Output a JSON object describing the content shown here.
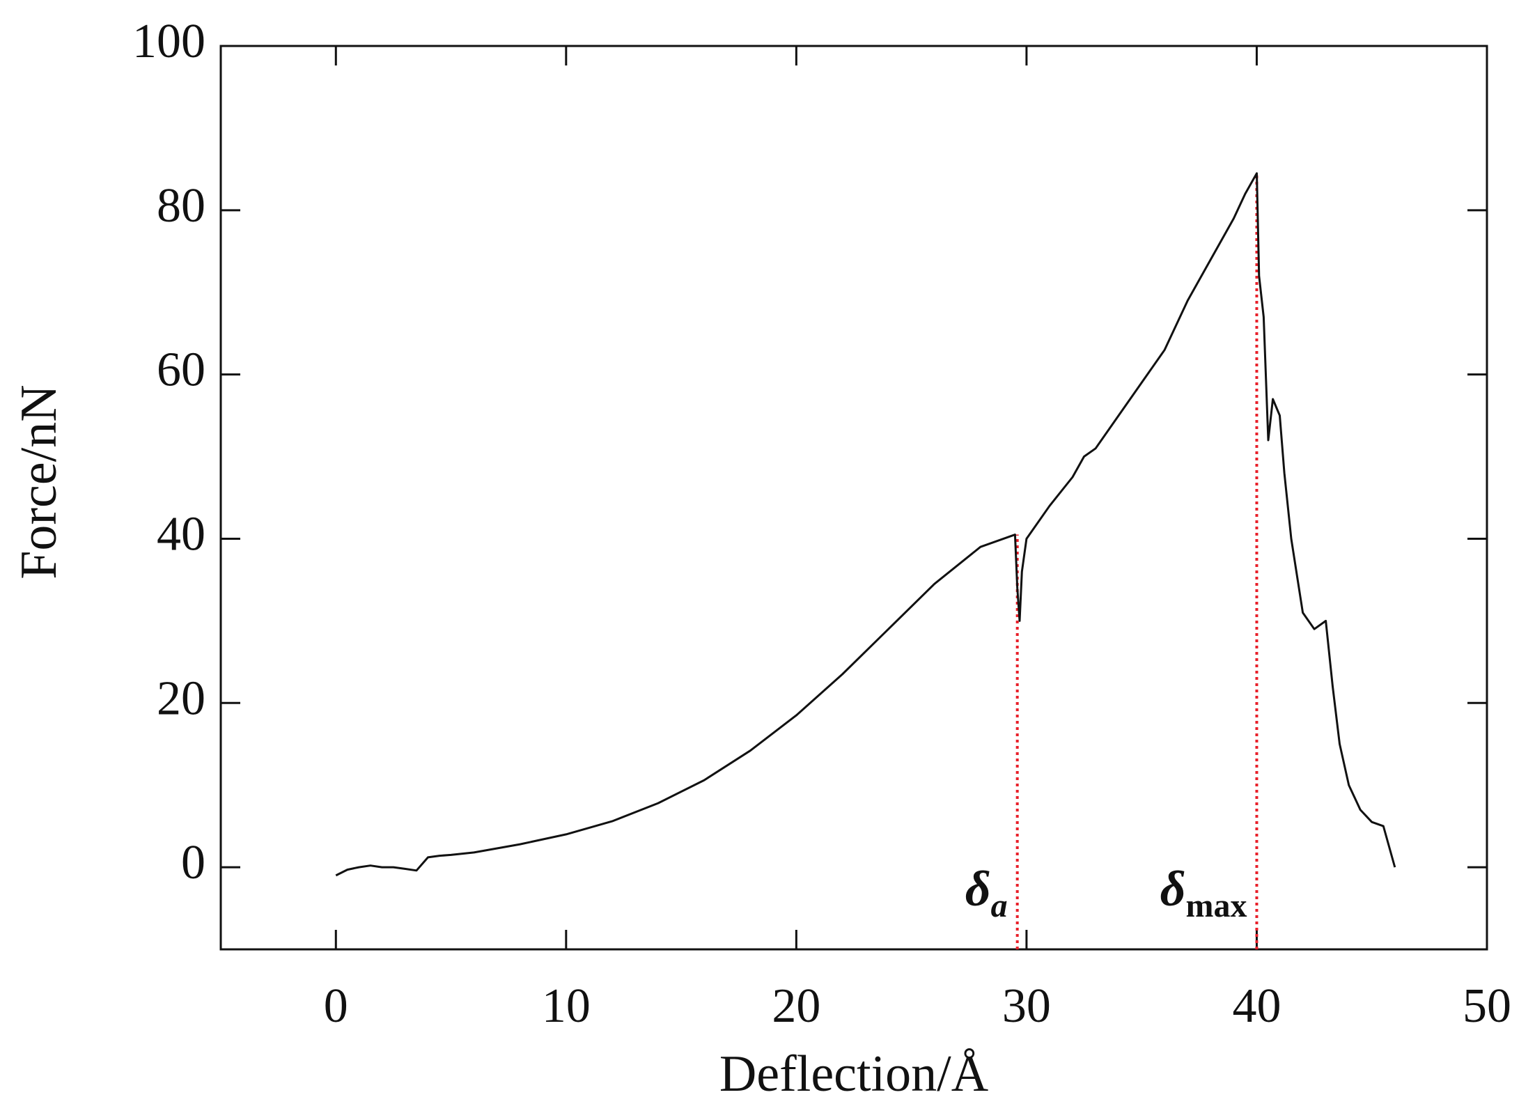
{
  "chart_data": {
    "type": "line",
    "xlabel": "Deflection/Å",
    "ylabel": "Force/nN",
    "xlim": [
      -5,
      50
    ],
    "ylim": [
      -10,
      100
    ],
    "xticks": [
      0,
      10,
      20,
      30,
      40,
      50
    ],
    "yticks": [
      0,
      20,
      40,
      60,
      80,
      100
    ],
    "series": [
      {
        "color": "#111111",
        "x": [
          0,
          0.5,
          1,
          1.5,
          2,
          2.5,
          3,
          3.5,
          4,
          4.5,
          5,
          6,
          8,
          10,
          12,
          14,
          16,
          18,
          20,
          22,
          24,
          26,
          28,
          29.5,
          29.6,
          29.7,
          29.8,
          30,
          31,
          32,
          32.5,
          33,
          34,
          35,
          36,
          37,
          38,
          39,
          39.5,
          40,
          40.1,
          40.3,
          40.5,
          40.7,
          41,
          41.2,
          41.5,
          42,
          42.5,
          43,
          43.3,
          43.6,
          44,
          44.5,
          45,
          45.5,
          46
        ],
        "values": [
          -1,
          -0.3,
          0,
          0.2,
          0,
          0,
          -0.2,
          -0.4,
          1.2,
          1.4,
          1.5,
          1.8,
          2.8,
          4,
          5.6,
          7.8,
          10.6,
          14.2,
          18.5,
          23.5,
          29,
          34.5,
          39,
          40.5,
          34,
          30,
          36,
          40,
          44,
          47.5,
          50,
          51,
          55,
          59,
          63,
          69,
          74,
          79,
          82,
          84.5,
          72,
          67,
          52,
          57,
          55,
          48,
          40,
          31,
          29,
          30,
          22,
          15,
          10,
          7,
          5.5,
          5,
          0
        ]
      }
    ],
    "annotations": [
      {
        "text": "δ",
        "sub": "a",
        "x": 29.6,
        "y": 40.5,
        "color": "#e8202a"
      },
      {
        "text": "δ",
        "sub": "max",
        "x": 40,
        "y": 84.5,
        "color": "#e8202a"
      }
    ]
  }
}
